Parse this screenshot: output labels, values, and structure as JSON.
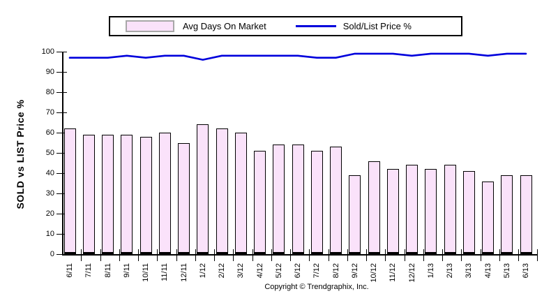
{
  "legend": {
    "bar_label": "Avg Days On Market",
    "line_label": "Sold/List Price %"
  },
  "y_axis_title": "SOLD vs LIST Price %",
  "footer": {
    "copyright": "Copyright © Trendgraphix, Inc."
  },
  "colors": {
    "background": "#ffffff",
    "bar_fill": "#fae2fa",
    "bar_border": "#000000",
    "line": "#0000dc",
    "swatch_border": "#a8a8a8",
    "axis": "#000000"
  },
  "chart_data": {
    "type": "bar",
    "categories": [
      "6/11",
      "7/11",
      "8/11",
      "9/11",
      "10/11",
      "11/11",
      "12/11",
      "1/12",
      "2/12",
      "3/12",
      "4/12",
      "5/12",
      "6/12",
      "7/12",
      "8/12",
      "9/12",
      "10/12",
      "11/12",
      "12/12",
      "1/13",
      "2/13",
      "3/13",
      "4/13",
      "5/13",
      "6/13"
    ],
    "series": [
      {
        "name": "Avg Days On Market",
        "mark": "bar",
        "color": "#fae2fa",
        "values": [
          62,
          59,
          59,
          59,
          58,
          60,
          55,
          64,
          62,
          60,
          51,
          54,
          54,
          51,
          53,
          39,
          46,
          42,
          44,
          42,
          44,
          41,
          36,
          39,
          39
        ]
      },
      {
        "name": "Sold/List Price %",
        "mark": "line",
        "color": "#0000dc",
        "values": [
          97,
          97,
          97,
          98,
          97,
          98,
          98,
          96,
          98,
          98,
          98,
          98,
          98,
          97,
          97,
          99,
          99,
          99,
          98,
          99,
          99,
          99,
          98,
          99,
          99
        ]
      }
    ],
    "ylabel": "SOLD vs LIST Price %",
    "ylim": [
      0,
      100
    ],
    "yticks": [
      0,
      10,
      20,
      30,
      40,
      50,
      60,
      70,
      80,
      90,
      100
    ],
    "grid": false,
    "legend_position": "top"
  }
}
